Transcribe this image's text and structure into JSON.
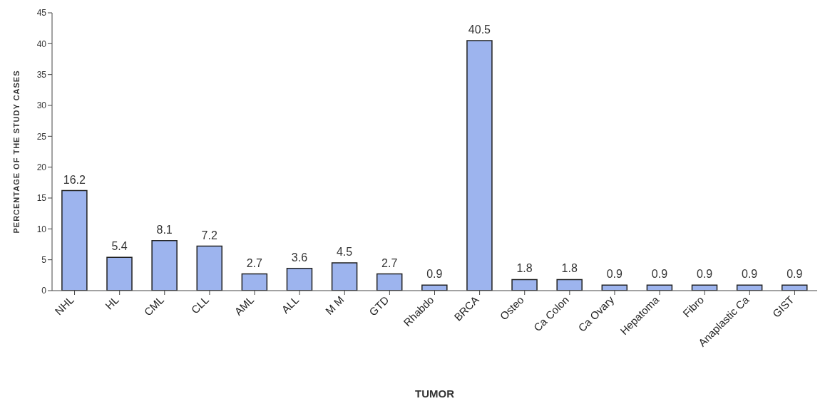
{
  "chart_data": {
    "type": "bar",
    "xlabel": "TUMOR",
    "ylabel": "PERCENTAGE OF THE STUDY CASES",
    "categories": [
      "NHL",
      "HL",
      "CML",
      "CLL",
      "AML",
      "ALL",
      "M M",
      "GTD",
      "Rhabdo",
      "BRCA",
      "Osteo",
      "Ca Colon",
      "Ca Ovary",
      "Hepatoma",
      "Fibro",
      "Anaplastic Ca",
      "GIST"
    ],
    "values": [
      16.2,
      5.4,
      8.1,
      7.2,
      2.7,
      3.6,
      4.5,
      2.7,
      0.9,
      40.5,
      1.8,
      1.8,
      0.9,
      0.9,
      0.9,
      0.9,
      0.9
    ],
    "color": "#9db4ee",
    "ylim": [
      0,
      45
    ],
    "yticks": [
      0,
      5,
      10,
      15,
      20,
      25,
      30,
      35,
      40,
      45
    ],
    "data_labels": true
  }
}
